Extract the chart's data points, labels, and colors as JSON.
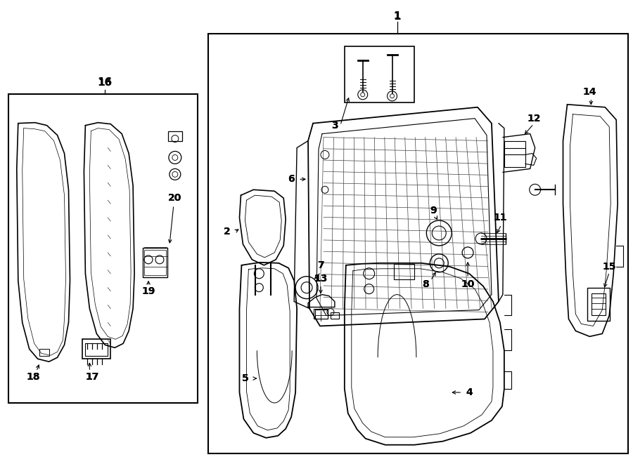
{
  "fig_width": 9.0,
  "fig_height": 6.61,
  "dpi": 100,
  "bg_color": "#ffffff",
  "lc": "#000000"
}
